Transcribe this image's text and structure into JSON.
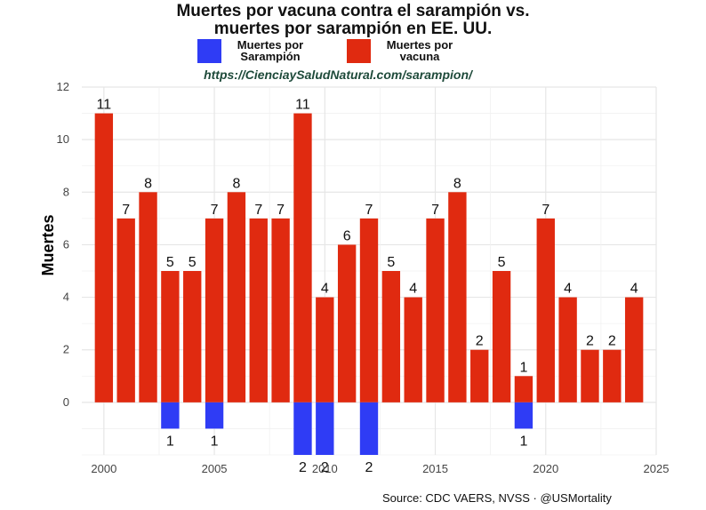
{
  "chart_data": {
    "type": "bar",
    "title_line1": "Muertes por vacuna contra el sarampión vs.",
    "title_line2": "muertes por sarampión en EE. UU.",
    "subtitle": "https://CienciaySaludNatural.com/sarampion/",
    "ylabel": "Muertes",
    "xlabel": "",
    "source": "Source: CDC VAERS, NVSS · @USMortality",
    "ylim": [
      -2,
      12
    ],
    "xlim": [
      1999,
      2025
    ],
    "yticks": [
      0,
      2,
      4,
      6,
      8,
      10,
      12
    ],
    "xticks": [
      2000,
      2005,
      2010,
      2015,
      2020,
      2025
    ],
    "grid": true,
    "legend_position": "top",
    "legend": [
      {
        "label_line1": "Muertes por",
        "label_line2": "Sarampión",
        "color": "#2f3cf5"
      },
      {
        "label_line1": "Muertes por",
        "label_line2": "vacuna",
        "color": "#e02a10"
      }
    ],
    "series": [
      {
        "name": "Muertes por vacuna",
        "color": "#e02a10",
        "x": [
          2000,
          2001,
          2002,
          2003,
          2004,
          2005,
          2006,
          2007,
          2008,
          2009,
          2010,
          2011,
          2012,
          2013,
          2014,
          2015,
          2016,
          2017,
          2018,
          2019,
          2020,
          2021,
          2022,
          2023,
          2024
        ],
        "values": [
          11,
          7,
          8,
          5,
          5,
          7,
          8,
          7,
          7,
          11,
          4,
          6,
          7,
          5,
          4,
          7,
          8,
          2,
          5,
          1,
          7,
          4,
          2,
          2,
          4
        ]
      },
      {
        "name": "Muertes por Sarampión",
        "color": "#2f3cf5",
        "x": [
          2003,
          2005,
          2009,
          2010,
          2012,
          2019
        ],
        "values": [
          1,
          1,
          2,
          2,
          2,
          1
        ]
      }
    ]
  }
}
